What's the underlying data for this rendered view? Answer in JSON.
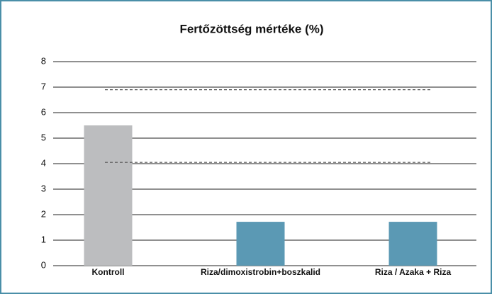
{
  "chart_data": {
    "type": "bar",
    "title": "Fertőzöttség mértéke (%)",
    "categories": [
      "Kontroll",
      "Riza/dimoxistrobin+boszkalid",
      "Riza / Azaka + Riza"
    ],
    "values": [
      5.5,
      1.72,
      1.72
    ],
    "colors": [
      "#bcbdbf",
      "#5b99b4",
      "#5b99b4"
    ],
    "reference_lines": [
      6.9,
      4.05
    ],
    "ylim": [
      0,
      8
    ],
    "yticks": [
      0,
      1,
      2,
      3,
      4,
      5,
      6,
      7,
      8
    ],
    "grid": true
  }
}
